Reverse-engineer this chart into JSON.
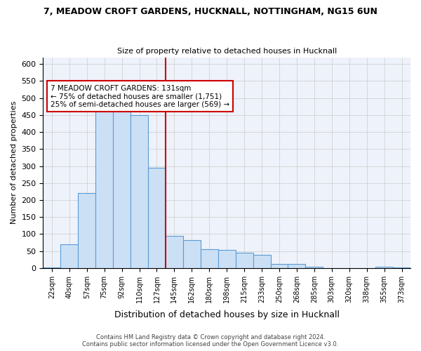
{
  "title_line1": "7, MEADOW CROFT GARDENS, HUCKNALL, NOTTINGHAM, NG15 6UN",
  "title_line2": "Size of property relative to detached houses in Hucknall",
  "xlabel": "Distribution of detached houses by size in Hucknall",
  "ylabel": "Number of detached properties",
  "footer_line1": "Contains HM Land Registry data © Crown copyright and database right 2024.",
  "footer_line2": "Contains public sector information licensed under the Open Government Licence v3.0.",
  "bins": [
    "22sqm",
    "40sqm",
    "57sqm",
    "75sqm",
    "92sqm",
    "110sqm",
    "127sqm",
    "145sqm",
    "162sqm",
    "180sqm",
    "198sqm",
    "215sqm",
    "233sqm",
    "250sqm",
    "268sqm",
    "285sqm",
    "303sqm",
    "320sqm",
    "338sqm",
    "355sqm",
    "373sqm"
  ],
  "values": [
    2,
    70,
    220,
    470,
    475,
    450,
    295,
    95,
    82,
    55,
    53,
    46,
    38,
    12,
    12,
    3,
    0,
    0,
    0,
    4,
    2
  ],
  "bar_color": "#cce0f5",
  "bar_edge_color": "#5b9bd5",
  "vline_x": 6,
  "vline_color": "#cc0000",
  "annotation_text": "7 MEADOW CROFT GARDENS: 131sqm\n← 75% of detached houses are smaller (1,751)\n25% of semi-detached houses are larger (569) →",
  "annotation_box_color": "#ffffff",
  "annotation_box_edge": "#cc0000",
  "ylim": [
    0,
    620
  ],
  "yticks": [
    0,
    50,
    100,
    150,
    200,
    250,
    300,
    350,
    400,
    450,
    500,
    550,
    600
  ],
  "background_color": "#eef2fa"
}
